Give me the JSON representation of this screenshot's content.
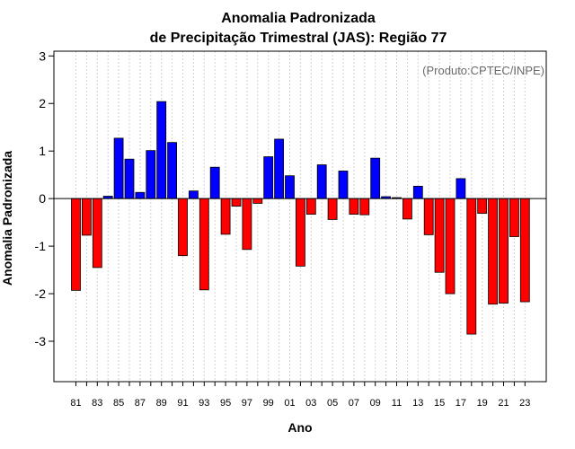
{
  "chart_data": {
    "type": "bar",
    "title": "Anomalia Padronizada",
    "subtitle": "de Precipitação Trimestral (JAS): Região 77",
    "xlabel": "Ano",
    "ylabel": "Anomalia Padronizada",
    "annotation": "(Produto:CPTEC/INPE)",
    "ylim": [
      -3.85,
      3.1
    ],
    "yticks": [
      3,
      2,
      1,
      0,
      -1,
      -2,
      -3
    ],
    "ytick_labels": [
      "3",
      "2",
      "1",
      "0",
      "-1",
      "-2",
      "-3"
    ],
    "grid": true,
    "categories": [
      "81",
      "82",
      "83",
      "84",
      "85",
      "86",
      "87",
      "88",
      "89",
      "90",
      "91",
      "92",
      "93",
      "94",
      "95",
      "96",
      "97",
      "98",
      "99",
      "00",
      "01",
      "02",
      "03",
      "04",
      "05",
      "06",
      "07",
      "08",
      "09",
      "10",
      "11",
      "12",
      "13",
      "14",
      "15",
      "16",
      "17",
      "18",
      "19",
      "20",
      "21",
      "22",
      "23"
    ],
    "xtick_labels": [
      "81",
      "83",
      "85",
      "87",
      "89",
      "91",
      "93",
      "95",
      "97",
      "99",
      "01",
      "03",
      "05",
      "07",
      "09",
      "11",
      "13",
      "15",
      "17",
      "19",
      "21",
      "23"
    ],
    "values": [
      -1.93,
      -0.77,
      -1.45,
      0.05,
      1.27,
      0.83,
      0.13,
      1.01,
      2.04,
      1.18,
      -1.2,
      0.16,
      -1.92,
      0.66,
      -0.75,
      -0.16,
      -1.07,
      -0.1,
      0.88,
      1.25,
      0.48,
      -1.42,
      -0.33,
      0.71,
      -0.44,
      0.58,
      -0.33,
      -0.34,
      0.85,
      0.04,
      0.02,
      -0.43,
      0.26,
      -0.76,
      -1.55,
      -2.0,
      0.42,
      -2.85,
      -0.31,
      -2.22,
      -2.2,
      -0.8,
      -2.17
    ],
    "colors": {
      "positive": "#0000ff",
      "negative": "#ff0000",
      "zero_line": "#000000",
      "grid": "#d3d3d3"
    }
  }
}
